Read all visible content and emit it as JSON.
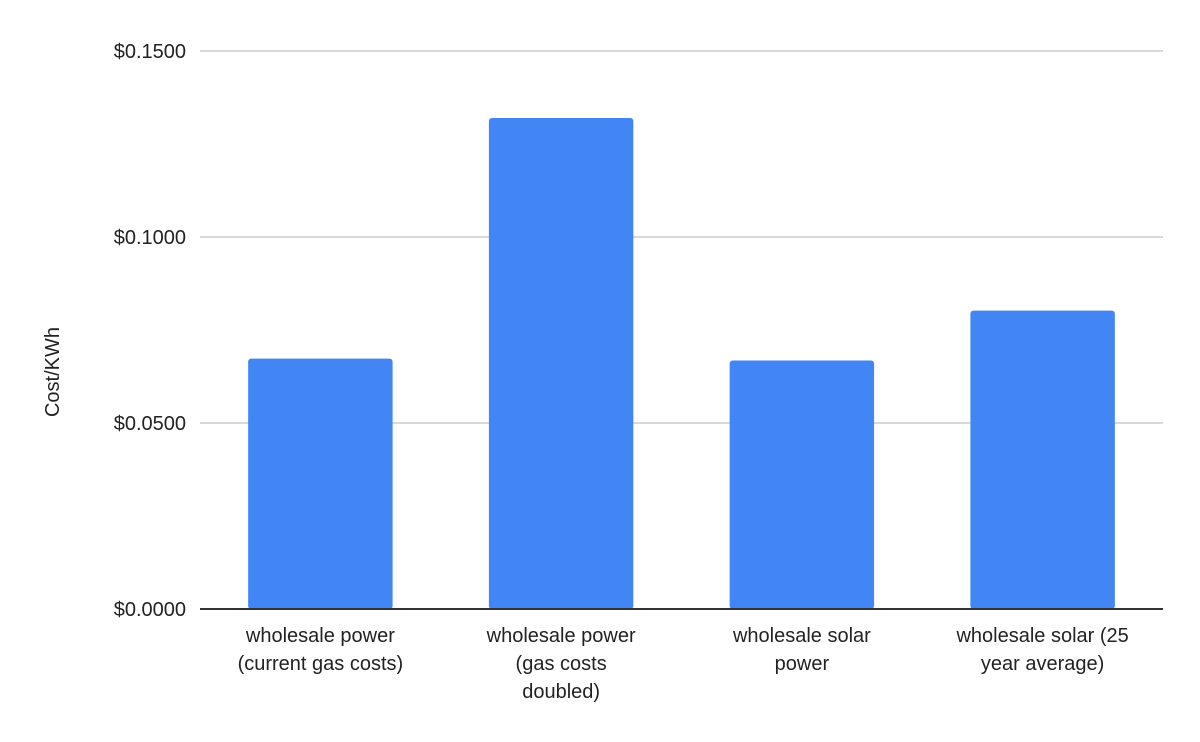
{
  "chart_data": {
    "type": "bar",
    "title": "",
    "xlabel": "",
    "ylabel": "Cost/KWh",
    "categories": [
      [
        "wholesale power",
        "(current gas costs)"
      ],
      [
        "wholesale power",
        "(gas costs",
        "doubled)"
      ],
      [
        "wholesale solar",
        "power"
      ],
      [
        "wholesale solar (25",
        "year average)"
      ]
    ],
    "values": [
      0.0673,
      0.132,
      0.0668,
      0.0802
    ],
    "ylim": [
      0,
      0.15
    ],
    "yticks": [
      0,
      0.05,
      0.1,
      0.15
    ],
    "ytick_labels": [
      "$0.0000",
      "$0.0500",
      "$0.1000",
      "$0.1500"
    ],
    "grid": true,
    "legend": "none",
    "bar_color": "#4285f4",
    "grid_color": "#cccccc",
    "axis_color": "#333333"
  }
}
